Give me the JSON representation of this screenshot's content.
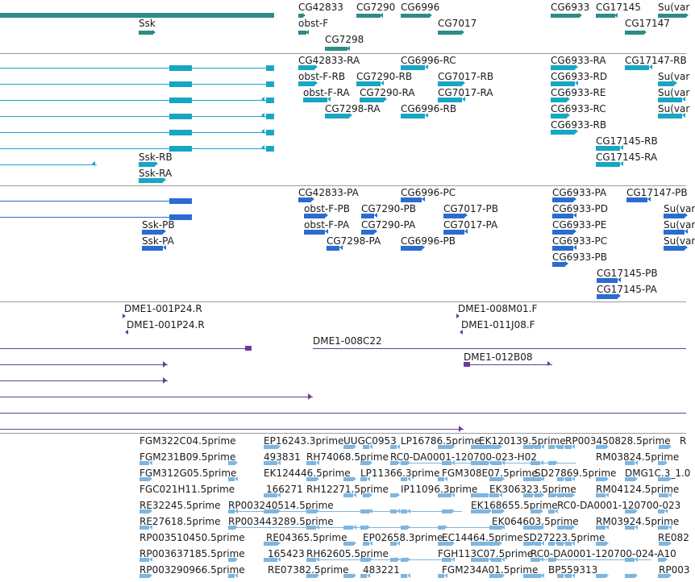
{
  "tracks": {
    "gene_span": {
      "color": "#2e8b87",
      "labels": [
        "CG42833",
        "CG7290",
        "CG6996",
        "CG6933",
        "CG17145",
        "Su(var",
        "Ssk",
        "obst-F",
        "CG7017",
        "CG17147",
        "CG7298"
      ]
    },
    "flybase_transcripts": {
      "color": "#17a6c4",
      "labels": [
        "CG42833-RA",
        "CG6996-RC",
        "CG6933-RA",
        "CG17147-RB",
        "obst-F-RB",
        "CG7290-RB",
        "CG7017-RB",
        "CG6933-RD",
        "Su(var",
        "obst-F-RA",
        "CG7290-RA",
        "CG7017-RA",
        "CG6933-RE",
        "Su(var",
        "CG7298-RA",
        "CG6996-RB",
        "CG6933-RC",
        "Su(var",
        "CG6933-RB",
        "CG17145-RB",
        "Ssk-RB",
        "CG17145-RA",
        "Ssk-RA"
      ]
    },
    "protein_coding": {
      "color": "#2b6cd0",
      "labels": [
        "CG42833-PA",
        "CG6996-PC",
        "CG6933-PA",
        "CG17147-PB",
        "obst-F-PB",
        "CG7290-PB",
        "CG7017-PB",
        "CG6933-PD",
        "Su(var",
        "obst-F-PA",
        "CG7290-PA",
        "CG7017-PA",
        "CG6933-PE",
        "Su(var",
        "Ssk-PB",
        "CG7298-PA",
        "CG6996-PB",
        "CG6933-PC",
        "Su(var",
        "Ssk-PA",
        "CG6933-PB",
        "CG17145-PB",
        "CG17145-PA"
      ]
    },
    "clones": {
      "color": "#6a3d9a",
      "labels": [
        "DME1-001P24.R",
        "DME1-008M01.F",
        "DME1-001P24.R",
        "DME1-011J08.F",
        "DME1-008C22",
        "DME1-012B08"
      ]
    },
    "ests": {
      "color": "#7fb6e0",
      "labels": [
        "FGM322C04.5prime",
        "EP16243.3prime",
        "UUGC0953",
        "LP16786.5prime",
        "EK120139.5prime",
        "RP003450828.5prime",
        "R",
        "FGM231B09.5prime",
        "493831",
        "RH74068.5prime",
        "RC0-DA0001-120700-023-H02",
        "RM03824.5prime",
        "FGM312G05.5prime",
        "EK124446.5prime",
        "LP11366.3prime",
        "FGM308E07.5prime",
        "SD27869.5prime",
        "DMG1C.3_1.0",
        "FGC021H11.5prime",
        "166271",
        "RH12271.5prime",
        "IP11096.3prime",
        "EK306323.5prime",
        "RM04124.5prime",
        "RE32245.5prime",
        "RP003240514.5prime",
        "EK168655.5prime",
        "RC0-DA0001-120700-023",
        "RE27618.5prime",
        "RP003443289.5prime",
        "EK064603.5prime",
        "RM03924.5prime",
        "RP003510450.5prime",
        "RE04365.5prime",
        "EP02658.3prime",
        "EC14464.5prime",
        "SD27223.5prime",
        "RE082",
        "RP003637185.5prime",
        "165423",
        "RH62605.5prime",
        "FGH113C07.5prime",
        "RC0-DA0001-120700-024-A10",
        "RP003290966.5prime",
        "RE07382.5prime",
        "483221",
        "FGM234A01.5prime",
        "BP559313",
        "RP003"
      ]
    }
  }
}
